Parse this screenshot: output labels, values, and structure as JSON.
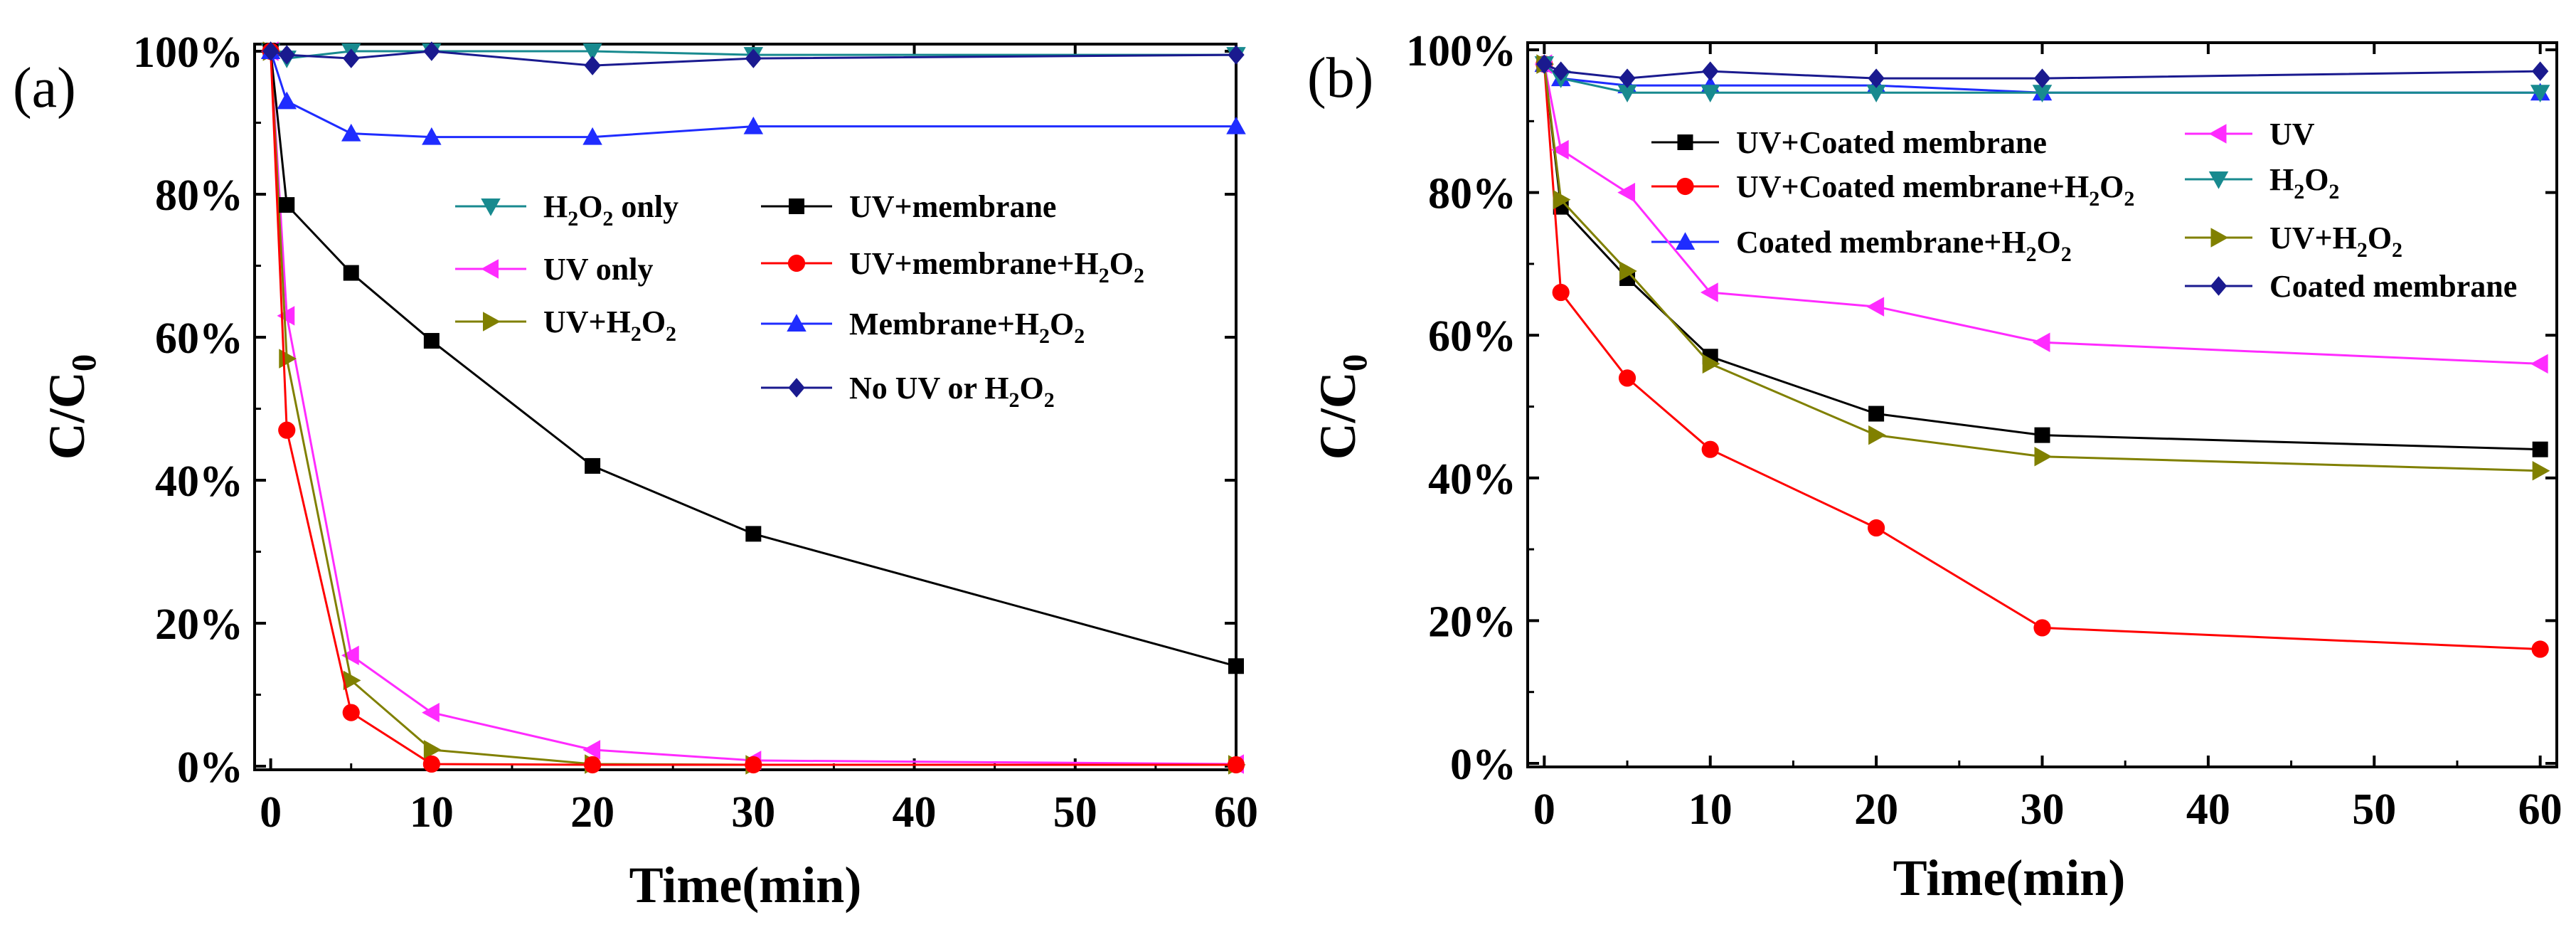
{
  "chart_data": [
    {
      "type": "line",
      "panel_label": "(a)",
      "xlabel": "Time(min)",
      "ylabel": "C/C",
      "ylabel_sub": "0",
      "xlim": [
        -1,
        60
      ],
      "ylim": [
        -0.5,
        101
      ],
      "xticks": [
        0,
        10,
        20,
        30,
        40,
        50,
        60
      ],
      "yticks": [
        0,
        20,
        40,
        60,
        80,
        100
      ],
      "ytick_labels": [
        "0%",
        "20%",
        "40%",
        "60%",
        "80%",
        "100%"
      ],
      "series": [
        {
          "name": "H2O2 only",
          "label_main": "H",
          "label_parts": [
            "H",
            "2",
            "O",
            "2",
            " only"
          ],
          "color": "#188a8f",
          "marker": "triangle-down",
          "x": [
            0,
            1,
            5,
            10,
            20,
            30,
            60
          ],
          "values": [
            100,
            99,
            100,
            100,
            100,
            99.5,
            99.5
          ]
        },
        {
          "name": "UV only",
          "label_parts": [
            "UV only"
          ],
          "color": "#ff2bff",
          "marker": "triangle-left",
          "x": [
            0,
            1,
            5,
            10,
            20,
            30,
            60
          ],
          "values": [
            100,
            63,
            15.5,
            7.5,
            2.3,
            0.8,
            0.3
          ]
        },
        {
          "name": "UV+H2O2",
          "label_parts": [
            "UV+H",
            "2",
            "O",
            "2"
          ],
          "color": "#808000",
          "marker": "triangle-right",
          "x": [
            0,
            1,
            5,
            10,
            20,
            30,
            60
          ],
          "values": [
            100,
            57,
            12,
            2.3,
            0.3,
            0.2,
            0.2
          ]
        },
        {
          "name": "UV+membrane",
          "label_parts": [
            "UV+membrane"
          ],
          "color": "#000000",
          "marker": "square",
          "x": [
            0,
            1,
            5,
            10,
            20,
            30,
            60
          ],
          "values": [
            100,
            78.5,
            69,
            59.5,
            42,
            32.5,
            14
          ]
        },
        {
          "name": "UV+membrane+H2O2",
          "label_parts": [
            "UV+membrane+H",
            "2",
            "O",
            "2"
          ],
          "color": "#ff0000",
          "marker": "circle",
          "x": [
            0,
            1,
            5,
            10,
            20,
            30,
            60
          ],
          "values": [
            100,
            47,
            7.5,
            0.3,
            0.2,
            0.2,
            0.2
          ]
        },
        {
          "name": "Membrane+H2O2",
          "label_parts": [
            "Membrane+H",
            "2",
            "O",
            "2"
          ],
          "color": "#1f2cff",
          "marker": "triangle-up",
          "x": [
            0,
            1,
            5,
            10,
            20,
            30,
            60
          ],
          "values": [
            100,
            93,
            88.5,
            88,
            88,
            89.5,
            89.5
          ]
        },
        {
          "name": "No UV or H2O2",
          "label_parts": [
            "No UV or H",
            "2",
            "O",
            "2"
          ],
          "color": "#1a1a8f",
          "marker": "diamond",
          "x": [
            0,
            1,
            5,
            10,
            20,
            30,
            60
          ],
          "values": [
            100,
            99.5,
            99,
            100,
            98,
            99,
            99.5
          ]
        }
      ]
    },
    {
      "type": "line",
      "panel_label": "(b)",
      "xlabel": "Time(min)",
      "ylabel": "C/C",
      "ylabel_sub": "0",
      "xlim": [
        -1,
        61
      ],
      "ylim": [
        -0.5,
        101
      ],
      "xticks": [
        0,
        10,
        20,
        30,
        40,
        50,
        60
      ],
      "yticks": [
        0,
        20,
        40,
        60,
        80,
        100
      ],
      "ytick_labels": [
        "0%",
        "20%",
        "40%",
        "60%",
        "80%",
        "100%"
      ],
      "series": [
        {
          "name": "UV+Coated membrane",
          "label_parts": [
            "UV+Coated membrane"
          ],
          "color": "#000000",
          "marker": "square",
          "x": [
            0,
            1,
            5,
            10,
            20,
            30,
            60
          ],
          "values": [
            98,
            78,
            68,
            57,
            49,
            46,
            44
          ]
        },
        {
          "name": "UV+Coated membrane+H2O2",
          "label_parts": [
            "UV+Coated membrane+H",
            "2",
            "O",
            "2"
          ],
          "color": "#ff0000",
          "marker": "circle",
          "x": [
            0,
            1,
            5,
            10,
            20,
            30,
            60
          ],
          "values": [
            98,
            66,
            54,
            44,
            33,
            19,
            16
          ]
        },
        {
          "name": "Coated membrane+H2O2",
          "label_parts": [
            "Coated membrane+H",
            "2",
            "O",
            "2"
          ],
          "color": "#1f2cff",
          "marker": "triangle-up",
          "x": [
            0,
            1,
            5,
            10,
            20,
            30,
            60
          ],
          "values": [
            98,
            96,
            95,
            95,
            95,
            94,
            94
          ]
        },
        {
          "name": "UV",
          "label_parts": [
            "UV"
          ],
          "color": "#ff2bff",
          "marker": "triangle-left",
          "x": [
            0,
            1,
            5,
            10,
            20,
            30,
            60
          ],
          "values": [
            98,
            86,
            80,
            66,
            64,
            59,
            56
          ]
        },
        {
          "name": "H2O2",
          "label_parts": [
            "H",
            "2",
            "O",
            "2"
          ],
          "color": "#188a8f",
          "marker": "triangle-down",
          "x": [
            0,
            1,
            5,
            10,
            20,
            30,
            60
          ],
          "values": [
            98,
            96,
            94,
            94,
            94,
            94,
            94
          ]
        },
        {
          "name": "UV+H2O2",
          "label_parts": [
            "UV+H",
            "2",
            "O",
            "2"
          ],
          "color": "#808000",
          "marker": "triangle-right",
          "x": [
            0,
            1,
            5,
            10,
            20,
            30,
            60
          ],
          "values": [
            98,
            79,
            69,
            56,
            46,
            43,
            41
          ]
        },
        {
          "name": "Coated membrane",
          "label_parts": [
            "Coated membrane"
          ],
          "color": "#1a1a8f",
          "marker": "diamond",
          "x": [
            0,
            1,
            5,
            10,
            20,
            30,
            60
          ],
          "values": [
            98,
            97,
            96,
            97,
            96,
            96,
            97
          ]
        }
      ]
    }
  ]
}
